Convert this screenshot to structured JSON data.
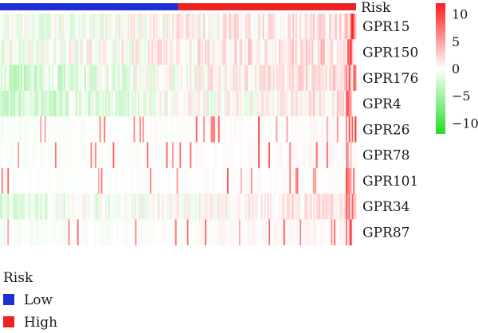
{
  "chart_data": {
    "type": "heatmap",
    "annotation": {
      "name": "Risk",
      "groups": [
        {
          "label": "Low",
          "color": "#1f2fd6",
          "share": 0.5
        },
        {
          "label": "High",
          "color": "#ee2222",
          "share": 0.5
        }
      ]
    },
    "rows": [
      "GPR15",
      "GPR150",
      "GPR176",
      "GPR4",
      "GPR26",
      "GPR78",
      "GPR101",
      "GPR34",
      "GPR87"
    ],
    "colorscale": {
      "min": -12,
      "max": 12,
      "low_color": "#22dd22",
      "mid_color": "#ffffff",
      "high_color": "#ff1a1a",
      "ticks": [
        10,
        5,
        0,
        -5,
        -10
      ],
      "tick_labels": [
        "10",
        "5",
        "0",
        "−5",
        "−10"
      ]
    },
    "legend": {
      "title": "Risk",
      "items": [
        {
          "label": "Low",
          "color": "#1f2fd6"
        },
        {
          "label": "High",
          "color": "#ee2222"
        }
      ]
    }
  }
}
